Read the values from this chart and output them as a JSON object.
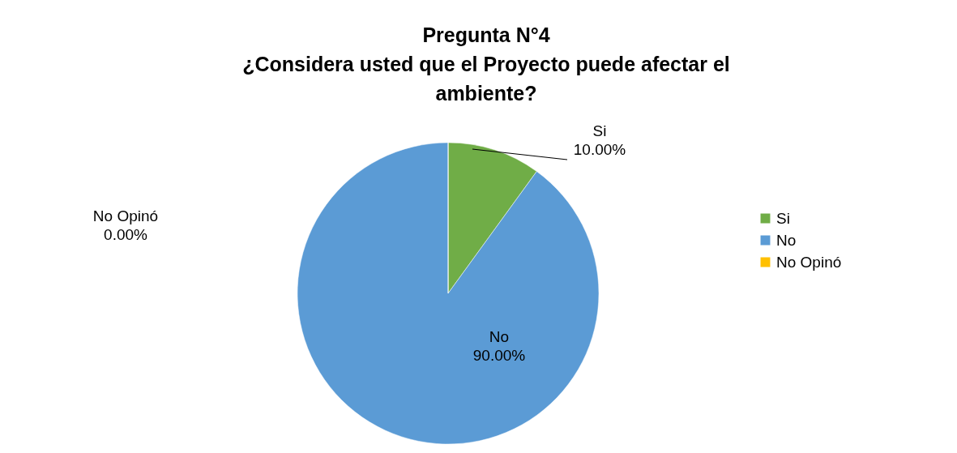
{
  "chart_data": {
    "type": "pie",
    "title": "Pregunta N°4\n¿Considera usted que el Proyecto puede afectar el\nambiente?",
    "categories": [
      "Si",
      "No",
      "No Opinó"
    ],
    "values": [
      10,
      90,
      0
    ],
    "value_labels": [
      "10.00%",
      "90.00%",
      "0.00%"
    ],
    "colors": [
      "#70ad47",
      "#5b9bd5",
      "#ffc000"
    ],
    "legend": "right"
  }
}
